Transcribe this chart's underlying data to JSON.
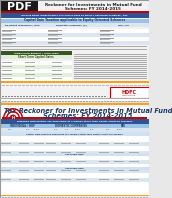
{
  "bg_color": "#e8e8e8",
  "page1_bg": "#f2f2f2",
  "page2_bg": "#ffffff",
  "header_blue": "#1f3864",
  "table_header_blue": "#2e5496",
  "table_subheader_blue": "#9dc3e6",
  "table_row_light": "#dce6f1",
  "table_row_white": "#ffffff",
  "green_header": "#375623",
  "green_light": "#e2efda",
  "red_accent": "#c00000",
  "orange_bar": "#f4a423",
  "dark_text": "#1a1a1a",
  "gray_text": "#555555",
  "hdfc_red": "#cc0000",
  "pdf_bg": "#1a1a1a",
  "separator_color": "#bbbbbb",
  "blue_row": "#cfe2f3",
  "mid_gray": "#888888"
}
